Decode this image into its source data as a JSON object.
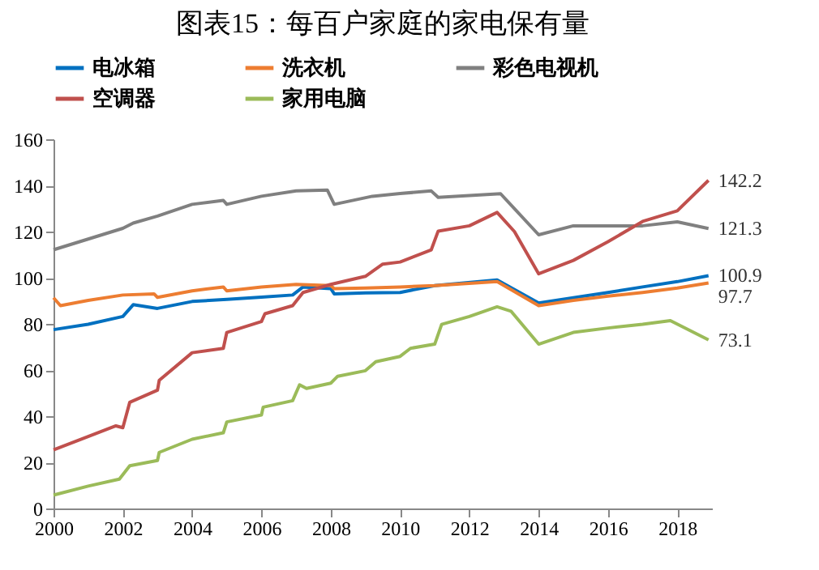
{
  "chart_data": {
    "type": "line",
    "title": "图表15：每百户家庭的家电保有量",
    "xlim": [
      2000,
      2019
    ],
    "xticks": [
      2000,
      2002,
      2004,
      2006,
      2008,
      2010,
      2012,
      2014,
      2016,
      2018
    ],
    "ylim": [
      0,
      160
    ],
    "yticks": [
      0,
      20,
      40,
      60,
      80,
      100,
      120,
      140,
      160
    ],
    "grid": false,
    "legend": "top",
    "marker": "none",
    "line_style": "solid",
    "series": [
      {
        "name": "电冰箱",
        "color": "#0070c0",
        "x": [
          2000,
          2001,
          2002,
          2002.3,
          2003,
          2004,
          2005,
          2006,
          2006.9,
          2007.2,
          2008,
          2008.1,
          2009,
          2010,
          2011,
          2012.8,
          2014,
          2015,
          2016,
          2017,
          2018,
          2018.9
        ],
        "values": [
          77.5,
          79.8,
          83.2,
          88.3,
          86.7,
          89.7,
          90.6,
          91.6,
          92.5,
          96,
          95.3,
          93,
          93.4,
          93.6,
          96.6,
          99,
          89,
          91.3,
          93.6,
          96,
          98.3,
          100.9
        ],
        "value_labels": [
          null,
          null,
          null,
          null,
          null,
          null,
          null,
          null,
          null,
          null,
          null,
          null,
          null,
          null,
          null,
          null,
          null,
          null,
          null,
          null,
          null,
          "100.9"
        ]
      },
      {
        "name": "洗衣机",
        "color": "#ed7d31",
        "x": [
          2000,
          2000.2,
          2001,
          2002,
          2002.9,
          2003,
          2004,
          2004.9,
          2005,
          2006,
          2007,
          2008,
          2008.1,
          2009,
          2010,
          2011,
          2012.8,
          2014,
          2015,
          2016,
          2017,
          2018,
          2018.9
        ],
        "values": [
          91.3,
          87.9,
          90.2,
          92.5,
          93,
          91.5,
          94.3,
          96,
          94.3,
          96,
          97.1,
          96.6,
          95.3,
          95.5,
          96,
          96.6,
          98.3,
          87.9,
          90.2,
          92,
          93.6,
          95.5,
          97.7
        ],
        "value_labels": [
          null,
          null,
          null,
          null,
          null,
          null,
          null,
          null,
          null,
          null,
          null,
          null,
          null,
          null,
          null,
          null,
          null,
          null,
          null,
          null,
          null,
          null,
          "97.7"
        ]
      },
      {
        "name": "彩色电视机",
        "color": "#808080",
        "x": [
          2000,
          2002,
          2002.3,
          2003,
          2004,
          2004.9,
          2005,
          2006,
          2007,
          2007.9,
          2008.1,
          2009.2,
          2010,
          2010.9,
          2011.1,
          2012.9,
          2014,
          2015,
          2017,
          2018,
          2018.9
        ],
        "values": [
          112.1,
          121.4,
          123.7,
          126.7,
          131.8,
          133.5,
          131.8,
          135.3,
          137.6,
          138,
          131.8,
          135.3,
          136.5,
          137.6,
          134.8,
          136.4,
          118.6,
          122.5,
          122.5,
          124.2,
          121.3
        ],
        "value_labels": [
          null,
          null,
          null,
          null,
          null,
          null,
          null,
          null,
          null,
          null,
          null,
          null,
          null,
          null,
          null,
          null,
          null,
          null,
          null,
          null,
          "121.3"
        ]
      },
      {
        "name": "空调器",
        "color": "#c0504d",
        "x": [
          2000,
          2001,
          2001.8,
          2002,
          2002.2,
          2003,
          2003.05,
          2004,
          2004.9,
          2005,
          2006,
          2006.1,
          2006.9,
          2007.2,
          2008,
          2009,
          2009.5,
          2010,
          2010.9,
          2011.1,
          2012,
          2012.8,
          2013.3,
          2014,
          2015,
          2016,
          2017,
          2018,
          2018.9
        ],
        "values": [
          25.4,
          31.2,
          35.8,
          35,
          46,
          51.3,
          55.5,
          67.5,
          69.4,
          76.3,
          81,
          84.4,
          87.9,
          93.6,
          97.1,
          100.6,
          105.9,
          106.8,
          112.1,
          120.2,
          122.5,
          128.3,
          120,
          101.7,
          107.5,
          115.6,
          124.4,
          129,
          142.2
        ],
        "value_labels": [
          null,
          null,
          null,
          null,
          null,
          null,
          null,
          null,
          null,
          null,
          null,
          null,
          null,
          null,
          null,
          null,
          null,
          null,
          null,
          null,
          null,
          null,
          null,
          null,
          null,
          null,
          null,
          null,
          "142.2"
        ]
      },
      {
        "name": "家用电脑",
        "color": "#9bbb59",
        "x": [
          2000,
          2001,
          2001.9,
          2002.2,
          2003,
          2003.05,
          2004,
          2004.9,
          2005,
          2006,
          2006.05,
          2006.9,
          2007.1,
          2007.3,
          2008,
          2008.2,
          2009,
          2009.3,
          2010,
          2010.3,
          2011,
          2011.2,
          2012,
          2012.8,
          2013.2,
          2014,
          2015,
          2016,
          2017,
          2017.8,
          2018.9
        ],
        "values": [
          5.8,
          9.7,
          12.7,
          18.5,
          20.8,
          24.3,
          30,
          32.8,
          37.5,
          40.5,
          43.9,
          46.7,
          53.6,
          52,
          54.3,
          57.3,
          59.7,
          63.6,
          65.9,
          69.4,
          71.2,
          79.8,
          83.2,
          87.4,
          85.5,
          71.2,
          76.3,
          78.2,
          79.8,
          81.4,
          73.1
        ],
        "value_labels": [
          null,
          null,
          null,
          null,
          null,
          null,
          null,
          null,
          null,
          null,
          null,
          null,
          null,
          null,
          null,
          null,
          null,
          null,
          null,
          null,
          null,
          null,
          null,
          null,
          null,
          null,
          null,
          null,
          null,
          null,
          "73.1"
        ]
      }
    ]
  }
}
